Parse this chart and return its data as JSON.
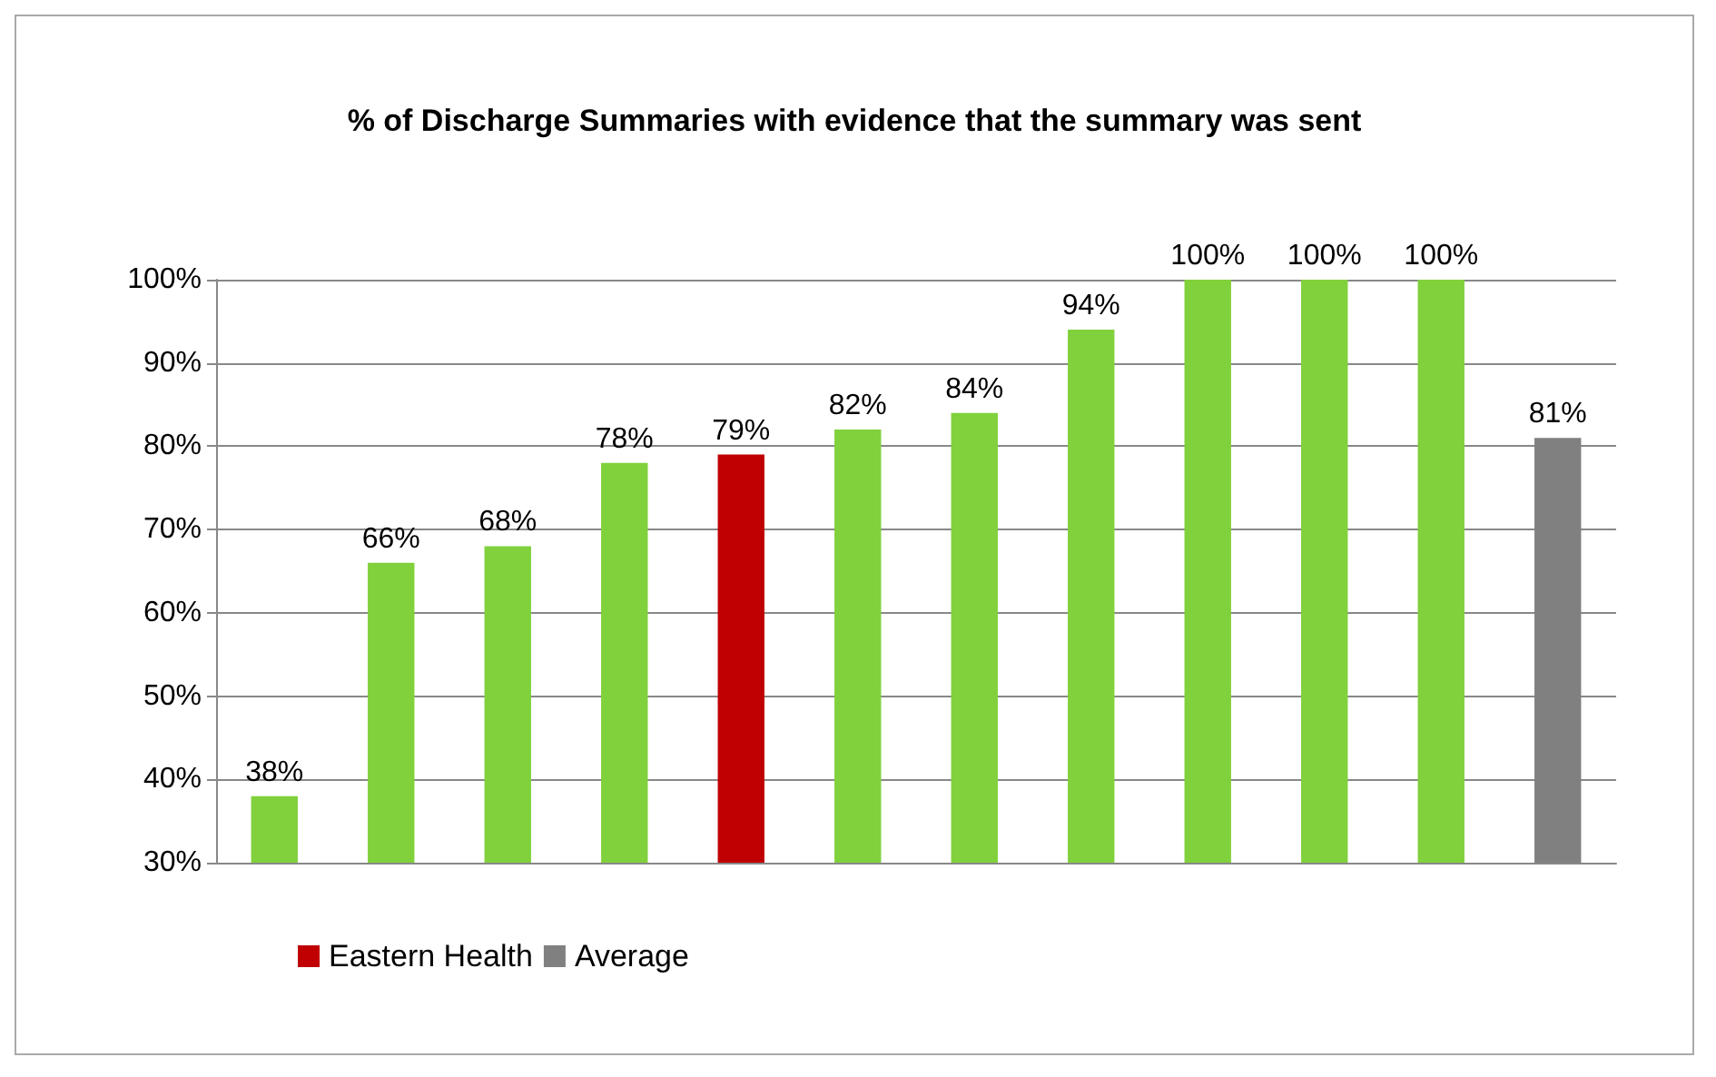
{
  "chart_data": {
    "type": "bar",
    "title": "% of Discharge Summaries with evidence that the summary was sent",
    "categories": [
      null,
      null,
      null,
      null,
      null,
      null,
      null,
      null,
      null,
      null,
      null,
      null
    ],
    "series": [
      {
        "color": "#80d13c",
        "values": [
          38,
          66,
          68,
          78,
          null,
          82,
          84,
          94,
          100,
          100,
          100,
          null
        ],
        "value_labels": [
          "38%",
          "66%",
          "68%",
          "78%",
          null,
          "82%",
          "84%",
          "94%",
          "100%",
          "100%",
          "100%",
          null
        ]
      },
      {
        "name": "Eastern Health",
        "color": "#c00000",
        "values": [
          null,
          null,
          null,
          null,
          79,
          null,
          null,
          null,
          null,
          null,
          null,
          null
        ],
        "value_labels": [
          null,
          null,
          null,
          null,
          "79%",
          null,
          null,
          null,
          null,
          null,
          null,
          null
        ]
      },
      {
        "name": "Average",
        "color": "#808080",
        "values": [
          null,
          null,
          null,
          null,
          null,
          null,
          null,
          null,
          null,
          null,
          null,
          81
        ],
        "value_labels": [
          null,
          null,
          null,
          null,
          null,
          null,
          null,
          null,
          null,
          null,
          null,
          "81%"
        ]
      }
    ],
    "stacked": true,
    "ylim": [
      30,
      100
    ],
    "yticks": [
      {
        "value": 30,
        "label": "30%"
      },
      {
        "value": 40,
        "label": "40%"
      },
      {
        "value": 50,
        "label": "50%"
      },
      {
        "value": 60,
        "label": "60%"
      },
      {
        "value": 70,
        "label": "70%"
      },
      {
        "value": 80,
        "label": "80%"
      },
      {
        "value": 90,
        "label": "90%"
      },
      {
        "value": 100,
        "label": "100%"
      }
    ],
    "grid": "y",
    "legend": "bottom left"
  }
}
